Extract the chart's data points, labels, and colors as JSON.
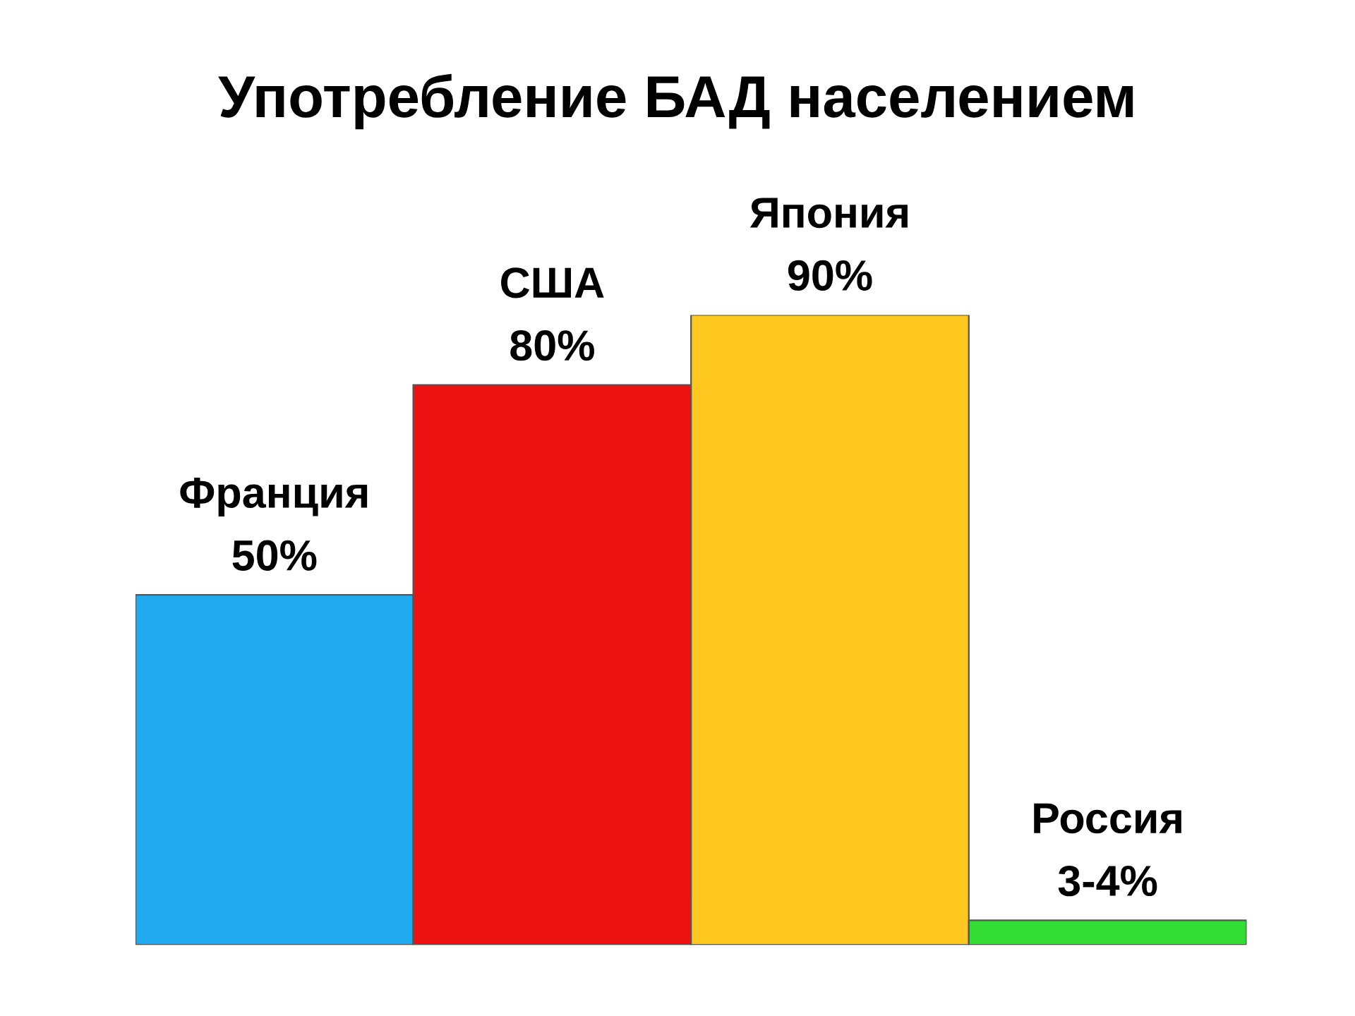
{
  "chart_data": {
    "type": "bar",
    "title": "Употребление БАД населением",
    "categories": [
      "Франция",
      "США",
      "Япония",
      "Россия"
    ],
    "values": [
      50,
      80,
      90,
      3.5
    ],
    "value_labels": [
      "50%",
      "80%",
      "90%",
      "3-4%"
    ],
    "colors": [
      "#22aaf0",
      "#ee1111",
      "#ffc820",
      "#33dd33"
    ],
    "tick_labels": false
  }
}
